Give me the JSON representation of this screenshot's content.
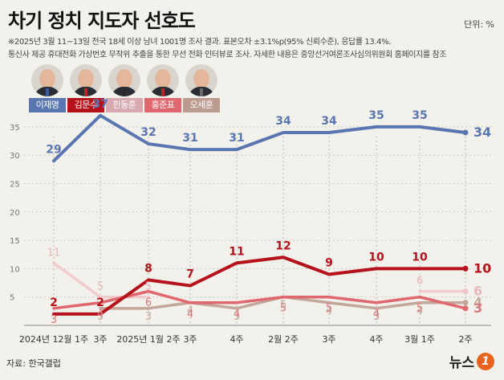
{
  "title": "차기 정치 지도자 선호도",
  "unit": "단위: %",
  "notes": [
    "※2025년 3월 11~13일 전국 18세 이상 남녀 1001명 조사 결과. 표본오차 ±3.1%p(95% 신뢰수준), 응답률 13.4%.",
    "통신사 제공 휴대전화 가상번호 무작위 추출을 통한 무선 전화 인터뷰로 조사. 자세한 내용은 중앙선거여론조사심의위원회 홈페이지를 참조"
  ],
  "source": "자료: 한국갤럽",
  "logo": "뉴스",
  "logo_mark": "1",
  "candidates": [
    {
      "name": "이재명",
      "color": "#5a76b0",
      "tie": "#3a5aa8"
    },
    {
      "name": "김문수",
      "color": "#b5121b",
      "tie": "#c0222a"
    },
    {
      "name": "한동훈",
      "color": "#d9a9b0",
      "tie": "#2a2a2a"
    },
    {
      "name": "홍준표",
      "color": "#e0676e",
      "tie": "#c0222a"
    },
    {
      "name": "오세훈",
      "color": "#bc9c90",
      "tie": "#6a6a6a"
    }
  ],
  "chart_data": {
    "type": "line",
    "categories": [
      "2024년 12월 1주",
      "3주",
      "2025년 1월 2주",
      "3주",
      "4주",
      "2월 2주",
      "3주",
      "4주",
      "3월 1주",
      "2주"
    ],
    "ylim": [
      0,
      37
    ],
    "yticks": [
      5,
      10,
      15,
      20,
      25,
      30,
      35
    ],
    "grid": true,
    "series": [
      {
        "name": "이재명",
        "color": "#5a76b0",
        "values": [
          29,
          37,
          32,
          31,
          31,
          34,
          34,
          35,
          35,
          34
        ]
      },
      {
        "name": "김문수",
        "color": "#b5121b",
        "values": [
          2,
          2,
          8,
          7,
          11,
          12,
          9,
          10,
          10,
          10
        ]
      },
      {
        "name": "한동훈",
        "color": "#f2c4c8",
        "values": [
          11,
          5,
          5,
          null,
          null,
          null,
          null,
          null,
          6,
          6
        ]
      },
      {
        "name": "홍준표",
        "color": "#e0676e",
        "values": [
          3,
          4,
          6,
          4,
          4,
          5,
          5,
          4,
          5,
          3
        ]
      },
      {
        "name": "오세훈",
        "color": "#c4a79b",
        "values": [
          null,
          3,
          3,
          4,
          3,
          5,
          4,
          3,
          4,
          4
        ]
      }
    ]
  }
}
